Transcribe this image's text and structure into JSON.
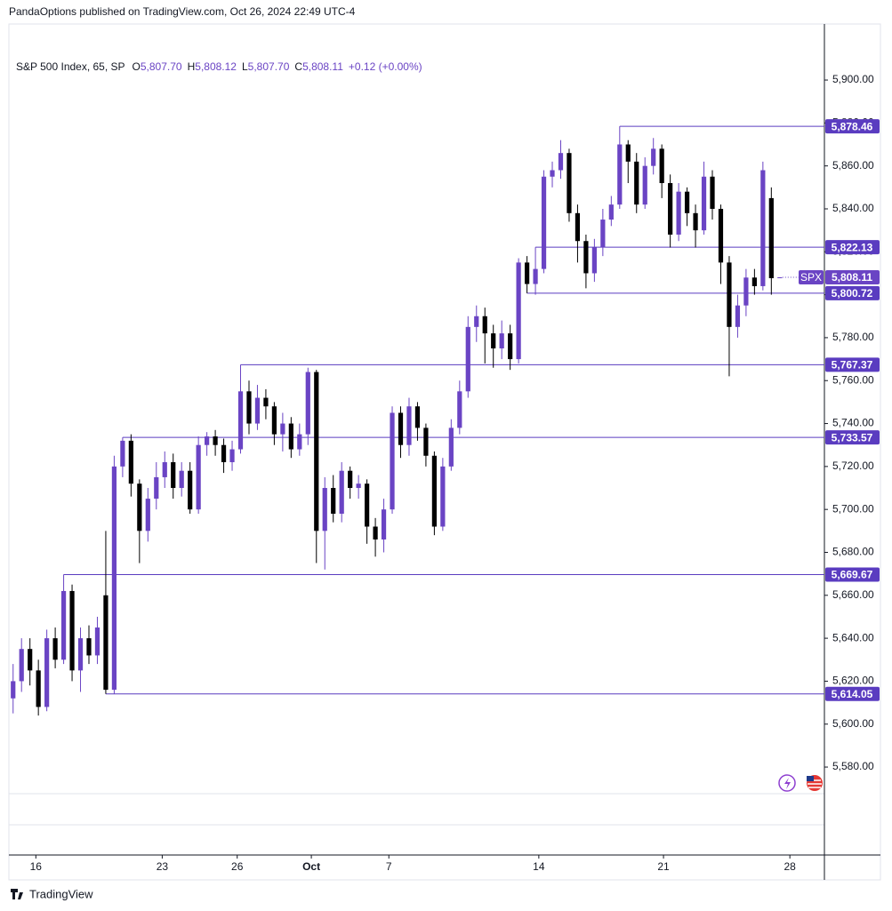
{
  "header": {
    "attribution": "PandaOptions published on TradingView.com, Oct 26, 2024 22:49 UTC-4"
  },
  "footer": {
    "brand": "TradingView"
  },
  "chart_data": {
    "type": "candlestick",
    "title": "S&P 500 Index, 65, SP",
    "ohlc_legend": [
      {
        "key": "O",
        "value": "5,807.70"
      },
      {
        "key": "H",
        "value": "5,808.12"
      },
      {
        "key": "L",
        "value": "5,807.70"
      },
      {
        "key": "C",
        "value": "5,808.11"
      }
    ],
    "change": "+0.12 (+0.00%)",
    "up_color": "#6a44c4",
    "down_color": "#000000",
    "level_color": "#5a3cc0",
    "open": [
      5612,
      5620,
      5635,
      5625,
      5608,
      5640,
      5630,
      5662,
      5625,
      5640,
      5632,
      5660,
      5616,
      5720,
      5732,
      5712,
      5690,
      5705,
      5715,
      5722,
      5710,
      5718,
      5700,
      5730,
      5734,
      5730,
      5722,
      5728,
      5755,
      5740,
      5752,
      5748,
      5735,
      5740,
      5728,
      5735,
      5764,
      5690,
      5710,
      5698,
      5718,
      5710,
      5712,
      5692,
      5686,
      5700,
      5745,
      5730,
      5748,
      5738,
      5725,
      5692,
      5720,
      5738,
      5755,
      5785,
      5790,
      5782,
      5775,
      5782,
      5770,
      5815,
      5805,
      5812,
      5855,
      5858,
      5866,
      5838,
      5825,
      5810,
      5822,
      5835,
      5842,
      5870,
      5862,
      5842,
      5860,
      5868,
      5852,
      5828,
      5848,
      5838,
      5830,
      5855,
      5840,
      5815,
      5785,
      5795,
      5808,
      5804,
      5845,
      5807.7
    ],
    "high": [
      5628,
      5640,
      5640,
      5630,
      5644,
      5645,
      5669.67,
      5665,
      5645,
      5646,
      5650,
      5690,
      5725,
      5733.57,
      5735,
      5714,
      5710,
      5722,
      5727,
      5726,
      5722,
      5722,
      5734,
      5736,
      5737,
      5733,
      5732,
      5767.37,
      5760,
      5758,
      5756,
      5750,
      5745,
      5743,
      5740,
      5766,
      5765,
      5715,
      5716,
      5722,
      5720,
      5716,
      5714,
      5696,
      5705,
      5748,
      5748,
      5752,
      5750,
      5740,
      5727,
      5724,
      5742,
      5760,
      5790,
      5795,
      5794,
      5786,
      5788,
      5786,
      5817,
      5818,
      5822.13,
      5858,
      5862,
      5872,
      5868,
      5842,
      5828,
      5826,
      5840,
      5846,
      5878.46,
      5872,
      5866,
      5864,
      5873,
      5870,
      5856,
      5852,
      5850,
      5842,
      5862,
      5858,
      5842,
      5818,
      5800,
      5812,
      5812,
      5862,
      5850,
      5808.12
    ],
    "low": [
      5605,
      5615,
      5618,
      5604,
      5606,
      5626,
      5628,
      5620,
      5615,
      5628,
      5628,
      5614.05,
      5614,
      5715,
      5706,
      5675,
      5685,
      5700,
      5710,
      5705,
      5706,
      5698,
      5698,
      5725,
      5725,
      5717,
      5718,
      5726,
      5735,
      5737,
      5742,
      5730,
      5727,
      5724,
      5725,
      5730,
      5675,
      5672,
      5694,
      5694,
      5705,
      5705,
      5684,
      5678,
      5680,
      5698,
      5724,
      5725,
      5732,
      5720,
      5688,
      5690,
      5718,
      5735,
      5752,
      5778,
      5768,
      5766,
      5770,
      5765,
      5768,
      5800.72,
      5800,
      5810,
      5850,
      5854,
      5834,
      5815,
      5803,
      5806,
      5818,
      5832,
      5840,
      5852,
      5838,
      5840,
      5856,
      5845,
      5822,
      5825,
      5832,
      5822,
      5828,
      5835,
      5805,
      5762,
      5780,
      5790,
      5800,
      5802,
      5800,
      5807.7
    ],
    "close": [
      5620,
      5635,
      5625,
      5608,
      5640,
      5630,
      5662,
      5625,
      5640,
      5632,
      5645,
      5616,
      5720,
      5732,
      5712,
      5690,
      5705,
      5715,
      5722,
      5710,
      5718,
      5700,
      5730,
      5734,
      5730,
      5722,
      5728,
      5755,
      5740,
      5752,
      5748,
      5735,
      5740,
      5728,
      5735,
      5764,
      5690,
      5710,
      5698,
      5718,
      5710,
      5712,
      5692,
      5686,
      5700,
      5745,
      5730,
      5748,
      5738,
      5725,
      5692,
      5720,
      5738,
      5755,
      5785,
      5790,
      5782,
      5775,
      5782,
      5770,
      5815,
      5805,
      5812,
      5855,
      5858,
      5866,
      5838,
      5825,
      5810,
      5822,
      5835,
      5842,
      5870,
      5862,
      5842,
      5860,
      5868,
      5852,
      5828,
      5848,
      5838,
      5830,
      5855,
      5840,
      5815,
      5785,
      5795,
      5808,
      5804,
      5858,
      5807.7,
      5808.11
    ],
    "xlim": [
      -0.5,
      96.3
    ],
    "xticks": [
      {
        "value": 2.7,
        "label": "16"
      },
      {
        "value": 17.7,
        "label": "23"
      },
      {
        "value": 26.6,
        "label": "26"
      },
      {
        "value": 35.4,
        "label": "Oct"
      },
      {
        "value": 44.6,
        "label": "7"
      },
      {
        "value": 62.4,
        "label": "14"
      },
      {
        "value": 77.2,
        "label": "21"
      },
      {
        "value": 92.2,
        "label": "28"
      }
    ],
    "ylim": [
      5567.6,
      5926.1
    ],
    "yticks": [
      {
        "value": 5580,
        "label": "5,580.00"
      },
      {
        "value": 5600,
        "label": "5,600.00"
      },
      {
        "value": 5620,
        "label": "5,620.00"
      },
      {
        "value": 5640,
        "label": "5,640.00"
      },
      {
        "value": 5660,
        "label": "5,660.00"
      },
      {
        "value": 5680,
        "label": "5,680.00"
      },
      {
        "value": 5700,
        "label": "5,700.00"
      },
      {
        "value": 5720,
        "label": "5,720.00"
      },
      {
        "value": 5740,
        "label": "5,740.00"
      },
      {
        "value": 5760,
        "label": "5,760.00"
      },
      {
        "value": 5780,
        "label": "5,780.00"
      },
      {
        "value": 5800,
        "label": "5,800.00"
      },
      {
        "value": 5820,
        "label": "5,820.00"
      },
      {
        "value": 5840,
        "label": "5,840.00"
      },
      {
        "value": 5860,
        "label": "5,860.00"
      },
      {
        "value": 5880,
        "label": "5,880.00"
      },
      {
        "value": 5900,
        "label": "5,900.00"
      }
    ],
    "levels": [
      {
        "value": 5878.46,
        "label": "5,878.46"
      },
      {
        "value": 5822.13,
        "label": "5,822.13"
      },
      {
        "value": 5800.72,
        "label": "5,800.72"
      },
      {
        "value": 5767.37,
        "label": "5,767.37"
      },
      {
        "value": 5733.57,
        "label": "5,733.57"
      },
      {
        "value": 5669.67,
        "label": "5,669.67"
      },
      {
        "value": 5614.05,
        "label": "5,614.05"
      }
    ],
    "last_price": {
      "symbol": "SPX",
      "value": 5808.11,
      "label": "5,808.11"
    }
  }
}
